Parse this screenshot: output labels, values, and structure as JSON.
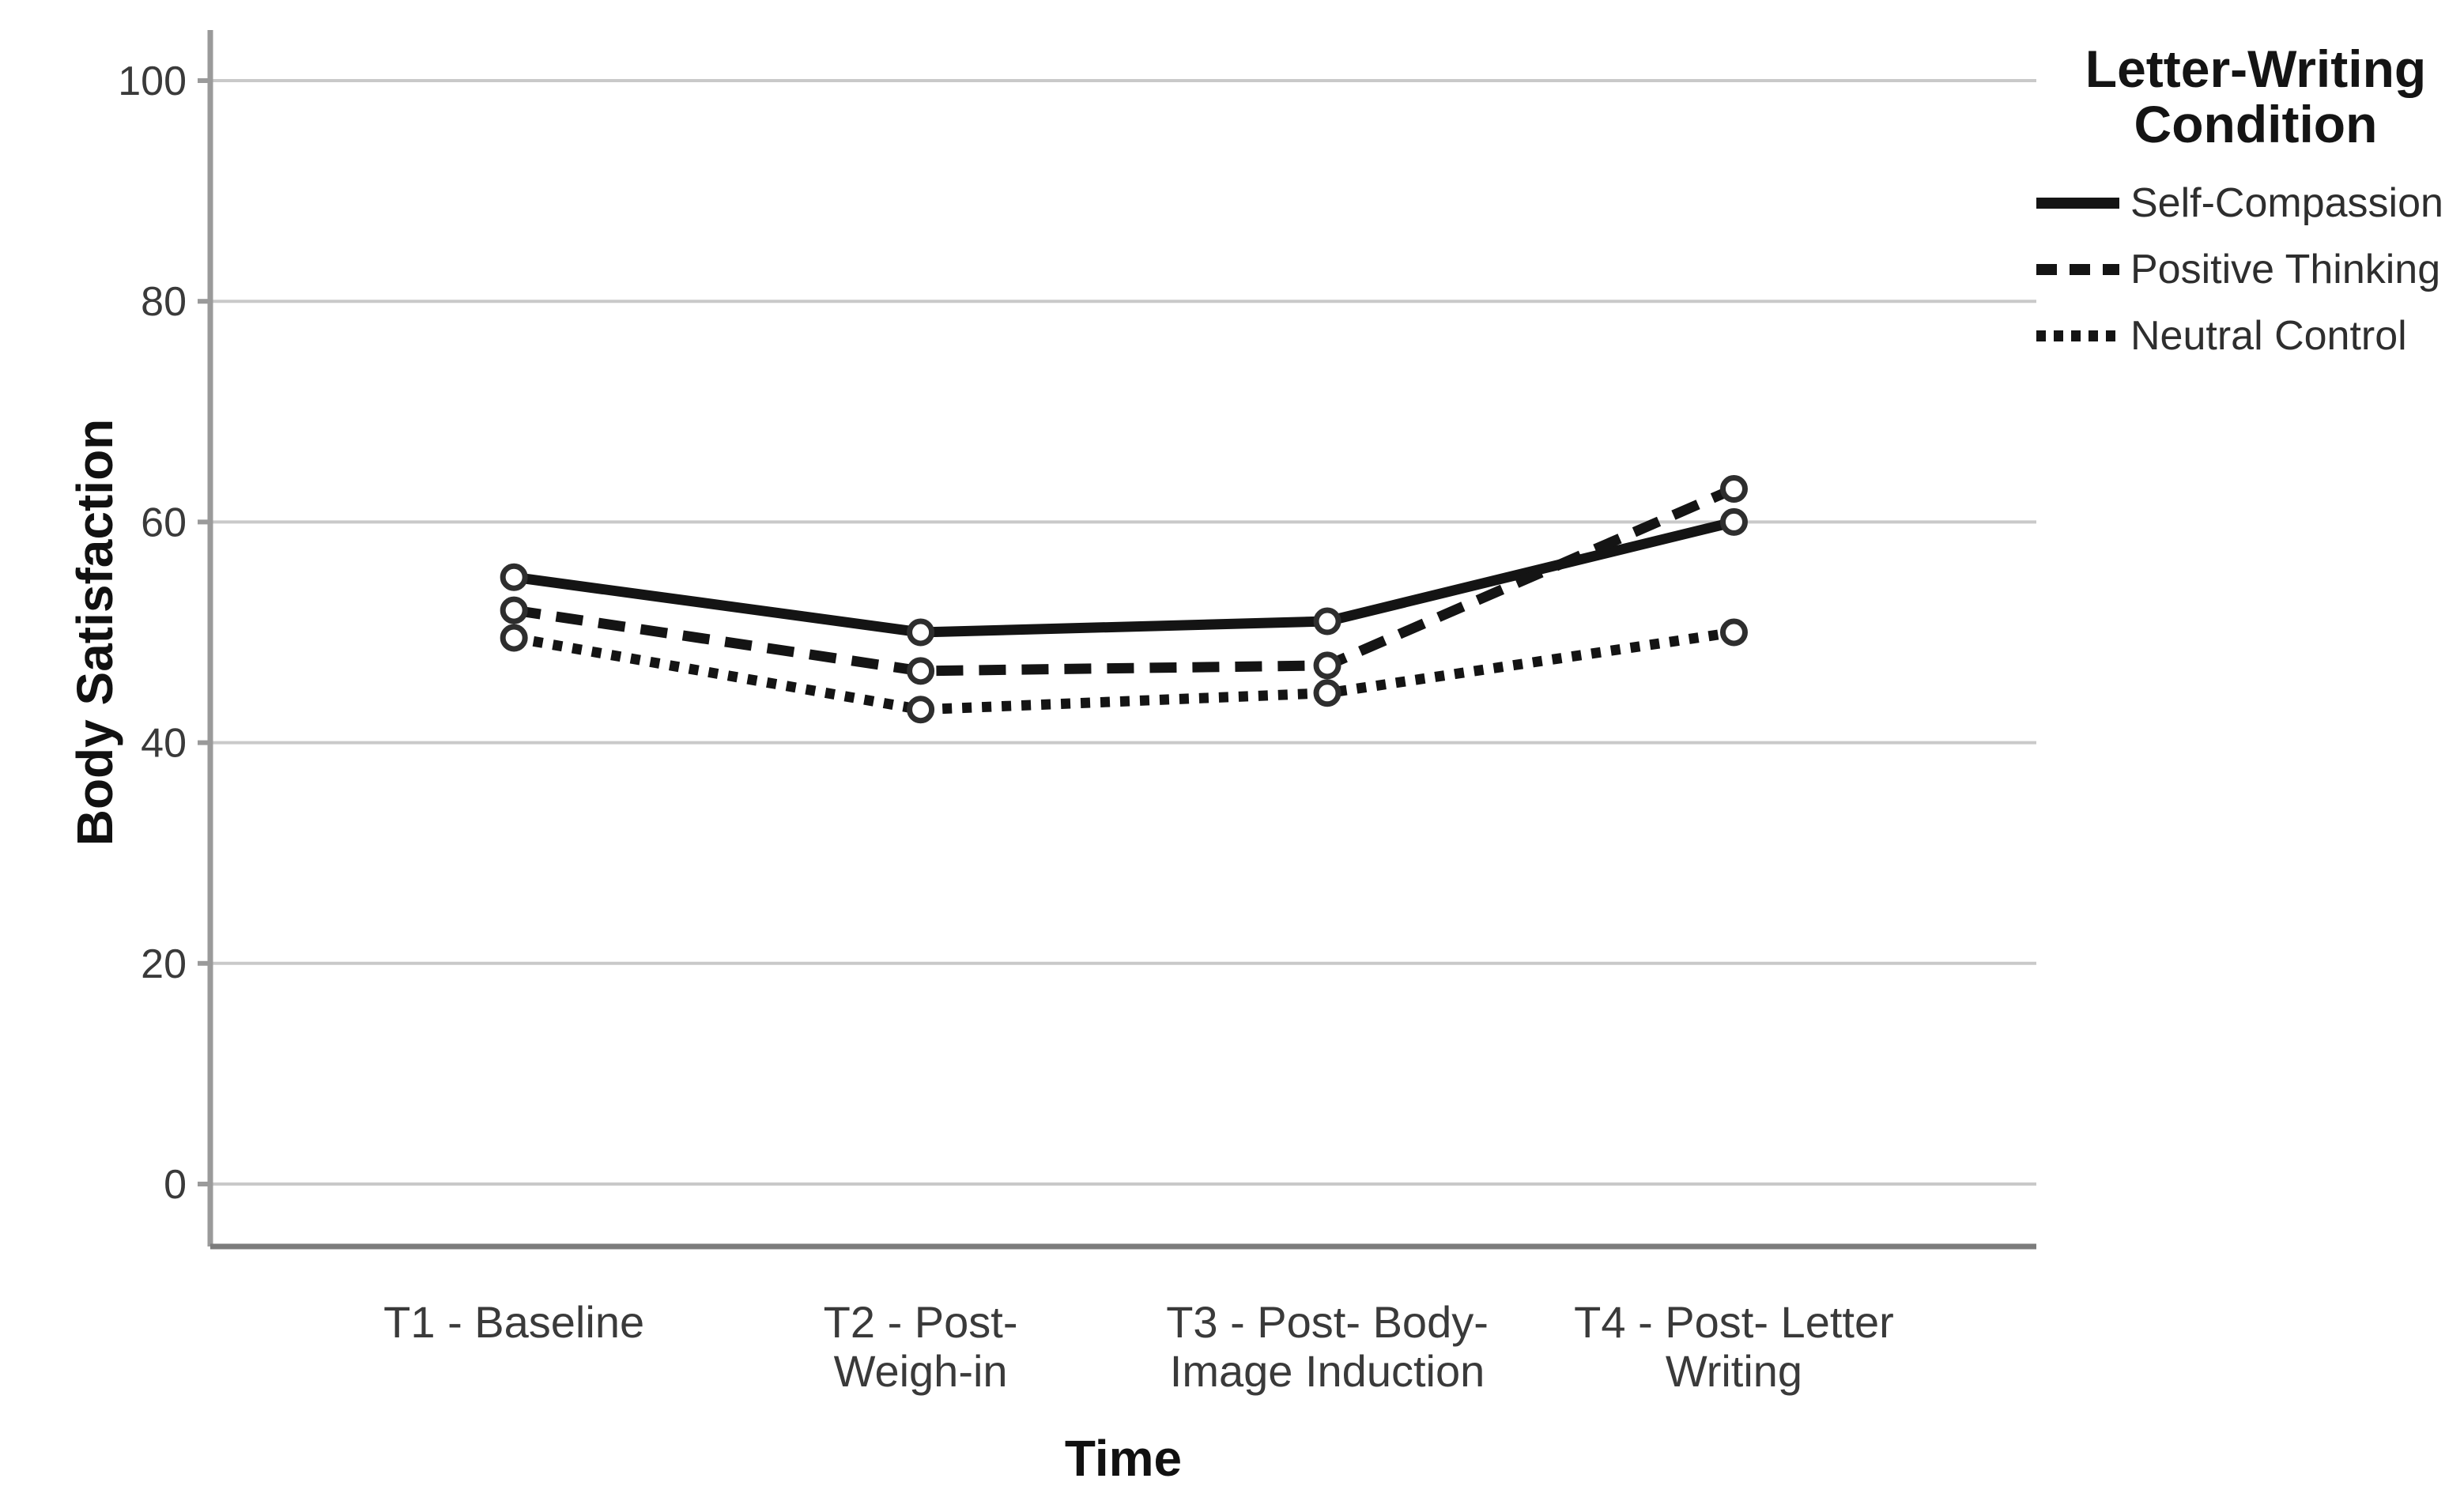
{
  "chart_data": {
    "type": "line",
    "title": "",
    "xlabel": "Time",
    "ylabel": "Body Satisfaction",
    "ylim": [
      0,
      100
    ],
    "yticks": [
      0,
      20,
      40,
      60,
      80,
      100
    ],
    "grid": true,
    "legend": {
      "title_lines": [
        "Letter-Writing",
        "Condition"
      ],
      "position": "top-right"
    },
    "marker": "open-circle",
    "categories": [
      {
        "label": "T1 - Baseline",
        "lines": [
          "T1 - Baseline"
        ]
      },
      {
        "label": "T2 - Post-Weigh-in",
        "lines": [
          "T2 - Post-",
          "Weigh-in"
        ]
      },
      {
        "label": "T3 - Post- Body-Image Induction",
        "lines": [
          "T3 - Post- Body-",
          "Image Induction"
        ]
      },
      {
        "label": "T4 - Post- Letter Writing",
        "lines": [
          "T4 - Post- Letter",
          "Writing"
        ]
      }
    ],
    "series": [
      {
        "name": "Self-Compassion",
        "style": "solid",
        "color": "#141414",
        "values": [
          55,
          50,
          51,
          60
        ]
      },
      {
        "name": "Positive Thinking",
        "style": "dashed",
        "color": "#141414",
        "values": [
          52,
          46.5,
          47,
          63
        ]
      },
      {
        "name": "Neutral Control",
        "style": "dotted",
        "color": "#141414",
        "values": [
          49.5,
          43,
          44.5,
          50
        ]
      }
    ],
    "colors": {
      "gridline": "#c9c9c9",
      "y_axis": "#9a9a9a",
      "x_axis": "#7c7c7c",
      "tick_text": "#3a3a3a",
      "marker_stroke": "#2e2e2e",
      "marker_fill": "#ffffff"
    }
  }
}
